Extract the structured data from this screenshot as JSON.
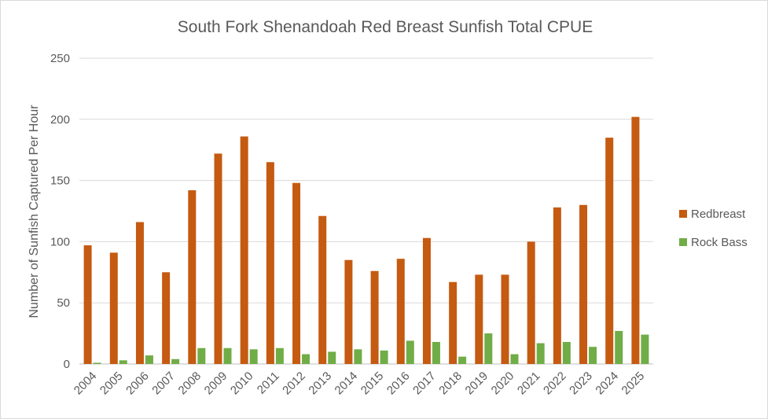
{
  "chart_data": {
    "type": "bar",
    "title": "South Fork Shenandoah Red Breast Sunfish Total CPUE",
    "xlabel": "",
    "ylabel": "Number of Sunfish Captured Per Hour",
    "ylim": [
      0,
      250
    ],
    "yticks": [
      0,
      50,
      100,
      150,
      200,
      250
    ],
    "grid": true,
    "legend_position": "right",
    "categories": [
      "2004",
      "2005",
      "2006",
      "2007",
      "2008",
      "2009",
      "2010",
      "2011",
      "2012",
      "2013",
      "2014",
      "2015",
      "2016",
      "2017",
      "2018",
      "2019",
      "2020",
      "2021",
      "2022",
      "2023",
      "2024",
      "2025"
    ],
    "series": [
      {
        "name": "Redbreast",
        "color": "#c55a11",
        "values": [
          97,
          91,
          116,
          75,
          142,
          172,
          186,
          165,
          148,
          121,
          85,
          76,
          86,
          103,
          67,
          73,
          73,
          100,
          128,
          130,
          185,
          202
        ]
      },
      {
        "name": "Rock Bass",
        "color": "#70ad47",
        "values": [
          1,
          3,
          7,
          4,
          13,
          13,
          12,
          13,
          8,
          10,
          12,
          11,
          19,
          18,
          6,
          25,
          8,
          17,
          18,
          14,
          27,
          24
        ]
      }
    ]
  }
}
